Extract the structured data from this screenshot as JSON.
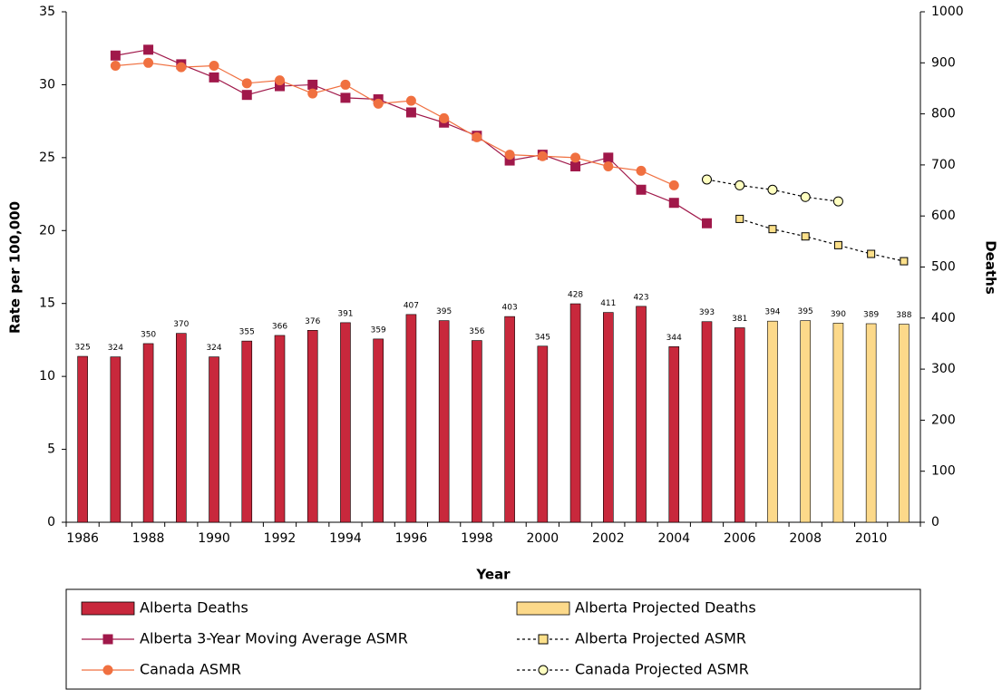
{
  "chart_data": {
    "type": "combo",
    "xlabel": "Year",
    "ylabel": "Rate per 100,000",
    "y2label": "Deaths",
    "categories": [
      "1986",
      null,
      "1988",
      null,
      "1990",
      null,
      "1992",
      null,
      "1994",
      null,
      "1996",
      null,
      "1998",
      null,
      "2000",
      null,
      "2002",
      null,
      "2004",
      null,
      "2006",
      null,
      "2008",
      null,
      "2010",
      null
    ],
    "ylim": [
      0,
      35
    ],
    "yticks": [
      0,
      5,
      10,
      15,
      20,
      25,
      30,
      35
    ],
    "y2lim": [
      0,
      1000
    ],
    "y2ticks": [
      0,
      100,
      200,
      300,
      400,
      500,
      600,
      700,
      800,
      900,
      1000
    ],
    "grid": false,
    "series": [
      {
        "name": "Alberta Deaths",
        "type": "bar",
        "axis": "y2",
        "color": "#c8283c",
        "values": [
          325,
          324,
          350,
          370,
          324,
          355,
          366,
          376,
          391,
          359,
          407,
          395,
          356,
          403,
          345,
          428,
          411,
          423,
          344,
          393,
          381,
          null,
          null,
          null,
          null,
          null
        ]
      },
      {
        "name": "Alberta Projected Deaths",
        "type": "bar",
        "axis": "y2",
        "color": "#fcd98a",
        "values": [
          null,
          null,
          null,
          null,
          null,
          null,
          null,
          null,
          null,
          null,
          null,
          null,
          null,
          null,
          null,
          null,
          null,
          null,
          null,
          null,
          null,
          394,
          395,
          390,
          389,
          388
        ]
      },
      {
        "name": "Alberta 3-Year Moving Average ASMR",
        "type": "line",
        "color": "#a0184a",
        "marker": "square",
        "marker_color": "#a0184a",
        "dashed": false,
        "values": [
          null,
          32.0,
          32.4,
          31.4,
          30.5,
          29.3,
          29.9,
          30.0,
          29.1,
          29.0,
          28.1,
          27.4,
          26.5,
          24.8,
          25.2,
          24.4,
          25.0,
          22.8,
          21.9,
          20.5,
          null,
          null,
          null,
          null,
          null,
          null
        ]
      },
      {
        "name": "Alberta Projected ASMR",
        "type": "line",
        "color": "#000000",
        "marker": "square",
        "marker_color": "#fce08a",
        "dashed": true,
        "values": [
          null,
          null,
          null,
          null,
          null,
          null,
          null,
          null,
          null,
          null,
          null,
          null,
          null,
          null,
          null,
          null,
          null,
          null,
          null,
          null,
          20.8,
          20.1,
          19.6,
          19.0,
          18.4,
          17.9
        ]
      },
      {
        "name": "Canada ASMR",
        "type": "line",
        "color": "#f07040",
        "marker": "circle",
        "marker_color": "#f07040",
        "dashed": false,
        "values": [
          null,
          31.3,
          31.5,
          31.2,
          31.3,
          30.1,
          30.3,
          29.4,
          30.0,
          28.7,
          28.9,
          27.7,
          26.4,
          25.2,
          25.1,
          25.0,
          24.4,
          24.1,
          23.1,
          null,
          null,
          null,
          null,
          null,
          null,
          null
        ]
      },
      {
        "name": "Canada Projected ASMR",
        "type": "line",
        "color": "#000000",
        "marker": "circle",
        "marker_color": "#ffffc0",
        "dashed": true,
        "values": [
          null,
          null,
          null,
          null,
          null,
          null,
          null,
          null,
          null,
          null,
          null,
          null,
          null,
          null,
          null,
          null,
          null,
          null,
          null,
          23.5,
          23.1,
          22.8,
          22.3,
          22.0,
          null,
          null
        ]
      }
    ]
  }
}
